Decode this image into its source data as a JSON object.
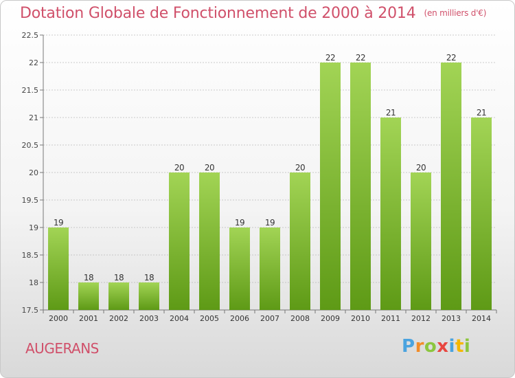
{
  "header": {
    "title": "Dotation Globale de Fonctionnement de 2000 à 2014",
    "unit": "(en milliers d'€)"
  },
  "footer": {
    "place": "AUGERANS",
    "logo": "Proxiti"
  },
  "colors": {
    "title": "#d0506a",
    "bar_top": "#a2d455",
    "bar_bottom": "#5e9a16",
    "grid": "#b9b9b9"
  },
  "chart_data": {
    "type": "bar",
    "title": "Dotation Globale de Fonctionnement de 2000 à 2014",
    "subtitle": "(en milliers d'€)",
    "xlabel": "",
    "ylabel": "",
    "categories": [
      "2000",
      "2001",
      "2002",
      "2003",
      "2004",
      "2005",
      "2006",
      "2007",
      "2008",
      "2009",
      "2010",
      "2011",
      "2012",
      "2013",
      "2014"
    ],
    "values": [
      19,
      18,
      18,
      18,
      20,
      20,
      19,
      19,
      20,
      22,
      22,
      21,
      20,
      22,
      21
    ],
    "data_labels": [
      "19",
      "18",
      "18",
      "18",
      "20",
      "20",
      "19",
      "19",
      "20",
      "22",
      "22",
      "21",
      "20",
      "22",
      "21"
    ],
    "ylim": [
      17.5,
      22.5
    ],
    "yticks": [
      17.5,
      18,
      18.5,
      19,
      19.5,
      20,
      20.5,
      21,
      21.5,
      22,
      22.5
    ],
    "ytick_labels": [
      "17.5",
      "18",
      "18.5",
      "19",
      "19.5",
      "20",
      "20.5",
      "21",
      "21.5",
      "22",
      "22.5"
    ],
    "grid": true,
    "legend": "none"
  }
}
